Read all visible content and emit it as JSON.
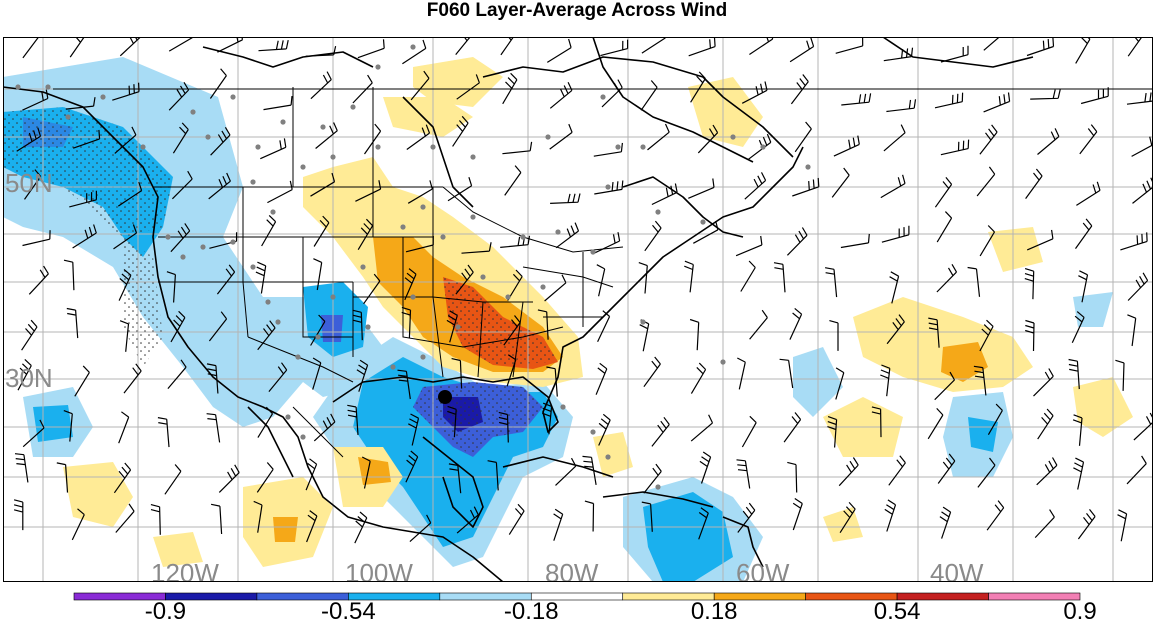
{
  "title": "F060 Layer-Average Across Wind",
  "lat_labels": [
    "50N",
    "30N"
  ],
  "lon_labels": [
    "120W",
    "100W",
    "80W",
    "60W",
    "40W"
  ],
  "colorbar": {
    "colors": [
      "#8a2bd6",
      "#1a1aa8",
      "#3c5fd9",
      "#1ab0ee",
      "#a8dcf5",
      "#ffffff",
      "#ffeb96",
      "#f5a818",
      "#e85514",
      "#c42020",
      "#f27fb4"
    ],
    "tick_labels": [
      "-0.9",
      "-0.54",
      "-0.18",
      "0.18",
      "0.54",
      "0.9"
    ]
  },
  "colors": {
    "grid": "#b4b4b4",
    "coast": "#000000",
    "label": "#8a8a8a",
    "station": "#808080"
  }
}
